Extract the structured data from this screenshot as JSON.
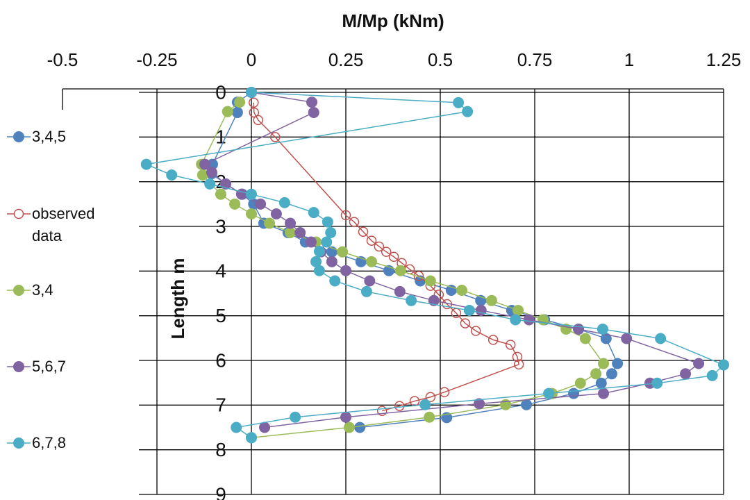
{
  "chart_data": {
    "type": "line",
    "title": "M/Mp (kNm)",
    "y_label": "Length m",
    "xlim": [
      -0.5,
      1.25
    ],
    "xticks": [
      -0.5,
      -0.25,
      0,
      0.25,
      0.5,
      0.75,
      1,
      1.25
    ],
    "ylim": [
      0,
      9
    ],
    "yticks": [
      0,
      1,
      2,
      3,
      4,
      5,
      6,
      7,
      8,
      9
    ],
    "y_inverted": true,
    "grid": true,
    "legend": "left",
    "series": [
      {
        "name": "3,4,5",
        "color": "#4f81bd",
        "marker": "filled",
        "x": [
          0,
          -0.037,
          -0.037,
          -0.103,
          -0.105,
          -0.068,
          -0.024,
          0.006,
          0.033,
          0.097,
          0.143,
          0.213,
          0.29,
          0.364,
          0.447,
          0.529,
          0.607,
          0.689,
          0.776,
          0.866,
          0.939,
          0.969,
          0.954,
          0.926,
          0.853,
          0.728,
          0.517,
          0.287
        ],
        "values": [
          0,
          0.22,
          0.45,
          1.61,
          1.82,
          2.05,
          2.28,
          2.5,
          2.93,
          3.14,
          3.35,
          3.57,
          3.79,
          3.99,
          4.22,
          4.43,
          4.66,
          4.88,
          5.09,
          5.3,
          5.51,
          6.07,
          6.3,
          6.51,
          6.74,
          6.99,
          7.28,
          7.5
        ]
      },
      {
        "name": "observed data",
        "color": "#c0504d",
        "marker": "hollow",
        "x": [
          0.006,
          0.007,
          0.018,
          0.063,
          0.25,
          0.272,
          0.296,
          0.318,
          0.338,
          0.357,
          0.377,
          0.398,
          0.419,
          0.443,
          0.474,
          0.496,
          0.518,
          0.542,
          0.566,
          0.594,
          0.64,
          0.686,
          0.704,
          0.708,
          0.511,
          0.474,
          0.432,
          0.392,
          0.346
        ],
        "values": [
          0.23,
          0.45,
          0.62,
          1.0,
          2.75,
          2.9,
          3.12,
          3.32,
          3.45,
          3.57,
          3.68,
          3.82,
          3.96,
          4.11,
          4.33,
          4.53,
          4.74,
          4.94,
          5.17,
          5.34,
          5.54,
          5.65,
          5.92,
          6.09,
          6.71,
          6.82,
          6.91,
          7.02,
          7.13
        ]
      },
      {
        "name": "3,4",
        "color": "#9bbb59",
        "marker": "filled",
        "x": [
          -0.031,
          -0.063,
          -0.132,
          -0.129,
          -0.081,
          -0.044,
          0,
          0.048,
          0.103,
          0.171,
          0.241,
          0.318,
          0.395,
          0.474,
          0.557,
          0.636,
          0.706,
          0.772,
          0.833,
          0.884,
          0.932,
          0.912,
          0.871,
          0.796,
          0.673,
          0.471,
          0.259,
          0
        ],
        "values": [
          0.22,
          0.43,
          1.61,
          1.85,
          2.28,
          2.5,
          2.72,
          2.93,
          3.14,
          3.35,
          3.57,
          3.79,
          3.99,
          4.22,
          4.43,
          4.66,
          4.88,
          5.09,
          5.3,
          5.51,
          6.07,
          6.3,
          6.51,
          6.74,
          6.99,
          7.27,
          7.5,
          7.73
        ]
      },
      {
        "name": "5,6,7",
        "color": "#8064a2",
        "marker": "filled",
        "x": [
          0,
          0.16,
          0.165,
          -0.123,
          -0.105,
          -0.068,
          -0.026,
          0.024,
          0.066,
          0.103,
          0.129,
          0.158,
          0.184,
          0.213,
          0.25,
          0.313,
          0.393,
          0.483,
          0.608,
          0.735,
          0.866,
          0.993,
          1.184,
          1.149,
          1.055,
          0.932,
          0.603,
          0.25,
          0.035
        ],
        "values": [
          0,
          0.22,
          0.45,
          1.61,
          1.79,
          2.05,
          2.28,
          2.5,
          2.72,
          2.93,
          3.14,
          3.35,
          3.57,
          3.79,
          3.99,
          4.22,
          4.46,
          4.66,
          4.88,
          5.09,
          5.3,
          5.51,
          6.07,
          6.3,
          6.51,
          6.74,
          6.97,
          7.27,
          7.5
        ]
      },
      {
        "name": "6,7,8",
        "color": "#4bacc6",
        "marker": "filled",
        "x": [
          0,
          0.548,
          0.572,
          -0.278,
          -0.211,
          -0.11,
          0,
          0.088,
          0.165,
          0.202,
          0.21,
          0.199,
          0.18,
          0.171,
          0.18,
          0.221,
          0.305,
          0.423,
          0.577,
          0.699,
          0.93,
          1.083,
          1.25,
          1.22,
          1.074,
          0.787,
          0.46,
          0.116,
          -0.04,
          0
        ],
        "values": [
          0,
          0.23,
          0.43,
          1.61,
          1.85,
          2.05,
          2.28,
          2.47,
          2.69,
          2.9,
          3.14,
          3.35,
          3.56,
          3.79,
          3.99,
          4.22,
          4.46,
          4.66,
          4.88,
          5.09,
          5.3,
          5.51,
          6.1,
          6.34,
          6.51,
          6.74,
          6.99,
          7.27,
          7.5,
          7.73
        ]
      }
    ]
  }
}
